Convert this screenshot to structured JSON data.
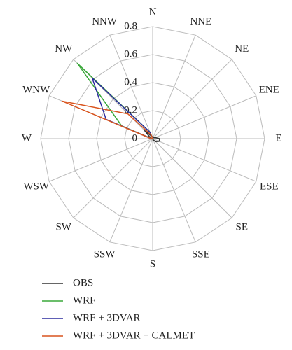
{
  "chart_data": {
    "type": "radar",
    "categories": [
      "N",
      "NNE",
      "NE",
      "ENE",
      "E",
      "ESE",
      "SE",
      "SSE",
      "S",
      "SSW",
      "SW",
      "WSW",
      "W",
      "WNW",
      "NW",
      "NNW"
    ],
    "ylim": [
      0,
      0.8
    ],
    "yticks": [
      0,
      0.2,
      0.4,
      0.6,
      0.8
    ],
    "grid": true,
    "series": [
      {
        "name": "OBS",
        "color": "#333333",
        "values": [
          0.01,
          0.01,
          0.01,
          0.02,
          0.05,
          0.05,
          0.03,
          0.01,
          0,
          0,
          0,
          0,
          0.01,
          0.02,
          0.08,
          0.02
        ]
      },
      {
        "name": "WRF",
        "color": "#3aa83a",
        "values": [
          0,
          0,
          0,
          0,
          0,
          0,
          0,
          0,
          0,
          0,
          0,
          0,
          0.01,
          0.24,
          0.76,
          0.05
        ]
      },
      {
        "name": "WRF + 3DVAR",
        "color": "#2b2b9e",
        "values": [
          0,
          0,
          0,
          0,
          0,
          0,
          0,
          0,
          0,
          0,
          0,
          0,
          0.01,
          0.36,
          0.61,
          0.05
        ]
      },
      {
        "name": "WRF + 3DVAR + CALMET",
        "color": "#d9541e",
        "values": [
          0,
          0,
          0,
          0,
          0,
          0,
          0,
          0,
          0,
          0,
          0,
          0,
          0.01,
          0.7,
          0.25,
          0.03
        ]
      }
    ]
  }
}
